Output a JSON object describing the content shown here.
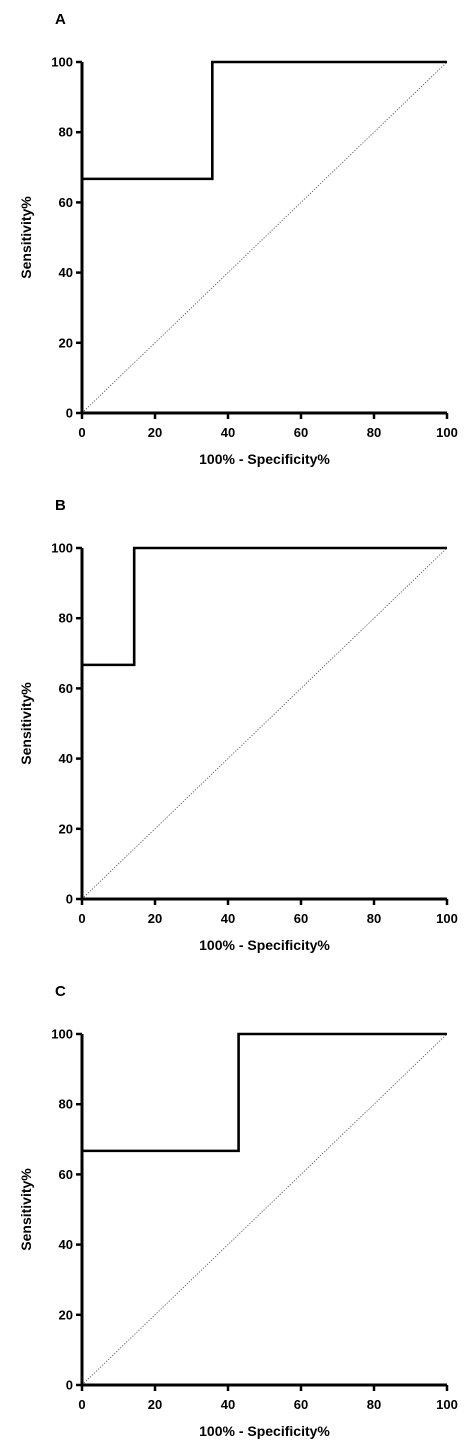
{
  "chart_data": [
    {
      "type": "line",
      "panel_label": "A",
      "xlabel": "100% - Specificity%",
      "ylabel": "Sensitivity%",
      "xlim": [
        0,
        100
      ],
      "ylim": [
        0,
        100
      ],
      "xticks": [
        0,
        20,
        40,
        60,
        80,
        100
      ],
      "yticks": [
        0,
        20,
        40,
        60,
        80,
        100
      ],
      "grid": false,
      "series": [
        {
          "x": [
            0,
            0,
            35.7,
            35.7,
            100
          ],
          "y": [
            0,
            66.7,
            66.7,
            100,
            100
          ],
          "color": "#000000"
        },
        {
          "x": [
            0,
            100
          ],
          "y": [
            0,
            100
          ],
          "color": "#555555",
          "style": "dotted"
        }
      ]
    },
    {
      "type": "line",
      "panel_label": "B",
      "xlabel": "100% - Specificity%",
      "ylabel": "Sensitivity%",
      "xlim": [
        0,
        100
      ],
      "ylim": [
        0,
        100
      ],
      "xticks": [
        0,
        20,
        40,
        60,
        80,
        100
      ],
      "yticks": [
        0,
        20,
        40,
        60,
        80,
        100
      ],
      "grid": false,
      "series": [
        {
          "x": [
            0,
            0,
            14.3,
            14.3,
            100
          ],
          "y": [
            0,
            66.7,
            66.7,
            100,
            100
          ],
          "color": "#000000"
        },
        {
          "x": [
            0,
            100
          ],
          "y": [
            0,
            100
          ],
          "color": "#555555",
          "style": "dotted"
        }
      ]
    },
    {
      "type": "line",
      "panel_label": "C",
      "xlabel": "100% - Specificity%",
      "ylabel": "Sensitivity%",
      "xlim": [
        0,
        100
      ],
      "ylim": [
        0,
        100
      ],
      "xticks": [
        0,
        20,
        40,
        60,
        80,
        100
      ],
      "yticks": [
        0,
        20,
        40,
        60,
        80,
        100
      ],
      "grid": false,
      "series": [
        {
          "x": [
            0,
            0,
            42.9,
            42.9,
            100
          ],
          "y": [
            0,
            66.7,
            66.7,
            100,
            100
          ],
          "color": "#000000"
        },
        {
          "x": [
            0,
            100
          ],
          "y": [
            0,
            100
          ],
          "color": "#555555",
          "style": "dotted"
        }
      ]
    }
  ]
}
